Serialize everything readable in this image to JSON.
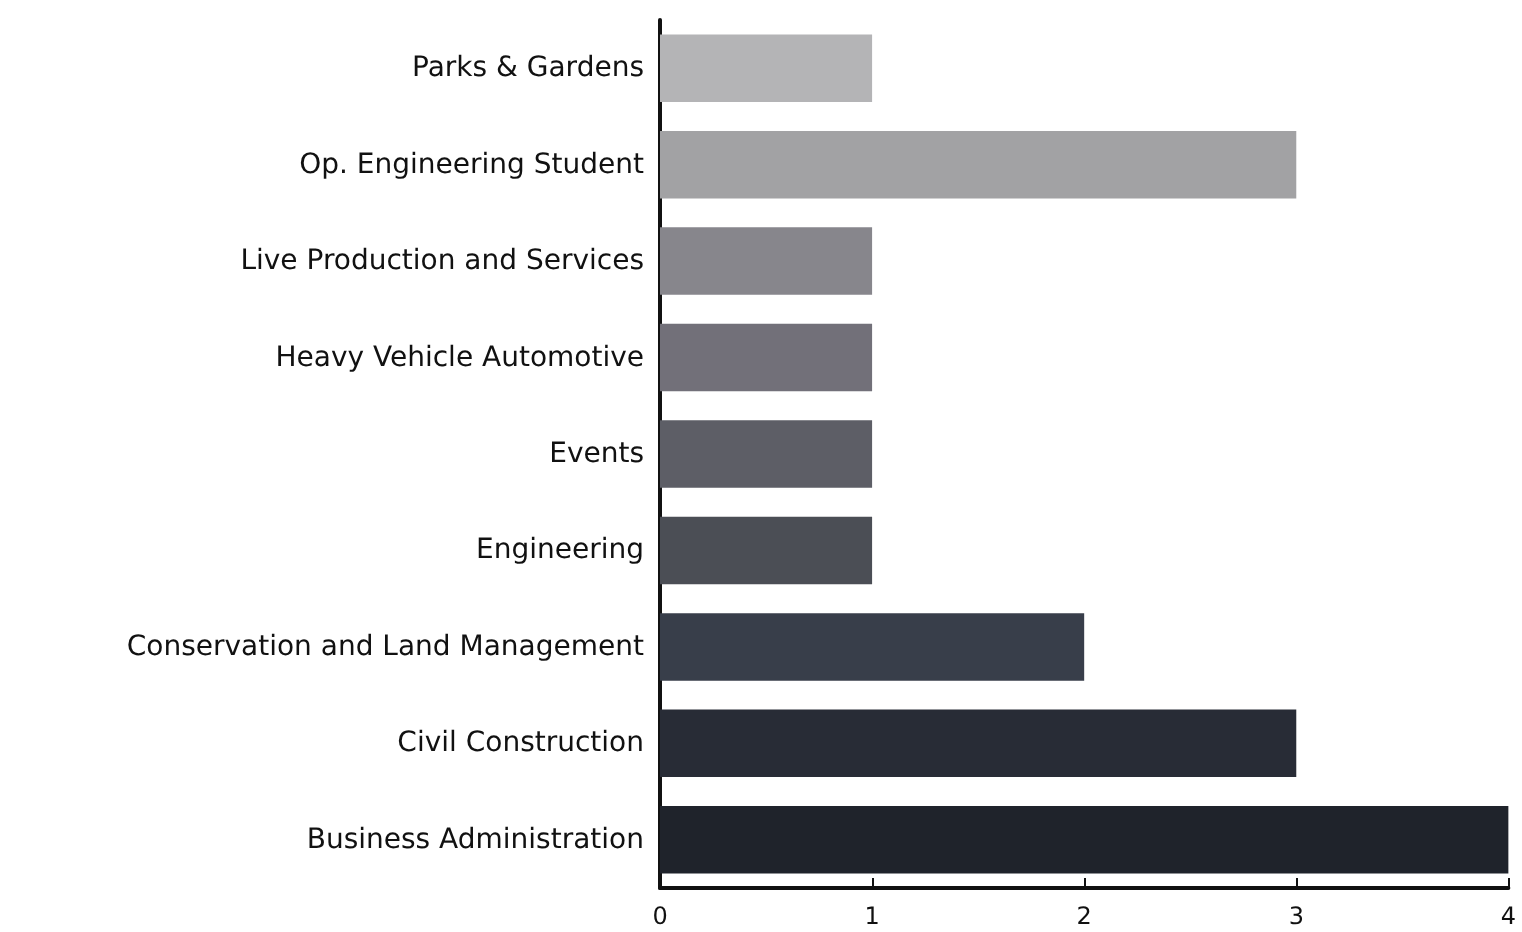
{
  "chart_data": {
    "type": "bar",
    "orientation": "horizontal",
    "categories": [
      "Parks & Gardens",
      "Op. Engineering Student",
      "Live Production and Services",
      "Heavy Vehicle Automotive",
      "Events",
      "Engineering",
      "Conservation and Land Management",
      "Civil Construction",
      "Business Administration"
    ],
    "values": [
      1,
      3,
      1,
      1,
      1,
      1,
      2,
      3,
      4
    ],
    "colors": [
      "#b4b4b6",
      "#a2a2a4",
      "#87868c",
      "#727079",
      "#5d5e66",
      "#4b4e55",
      "#383e4a",
      "#282c36",
      "#1f232b"
    ],
    "xlim": [
      0,
      4
    ],
    "xticks": [
      0,
      1,
      2,
      3,
      4
    ],
    "grid": false
  }
}
